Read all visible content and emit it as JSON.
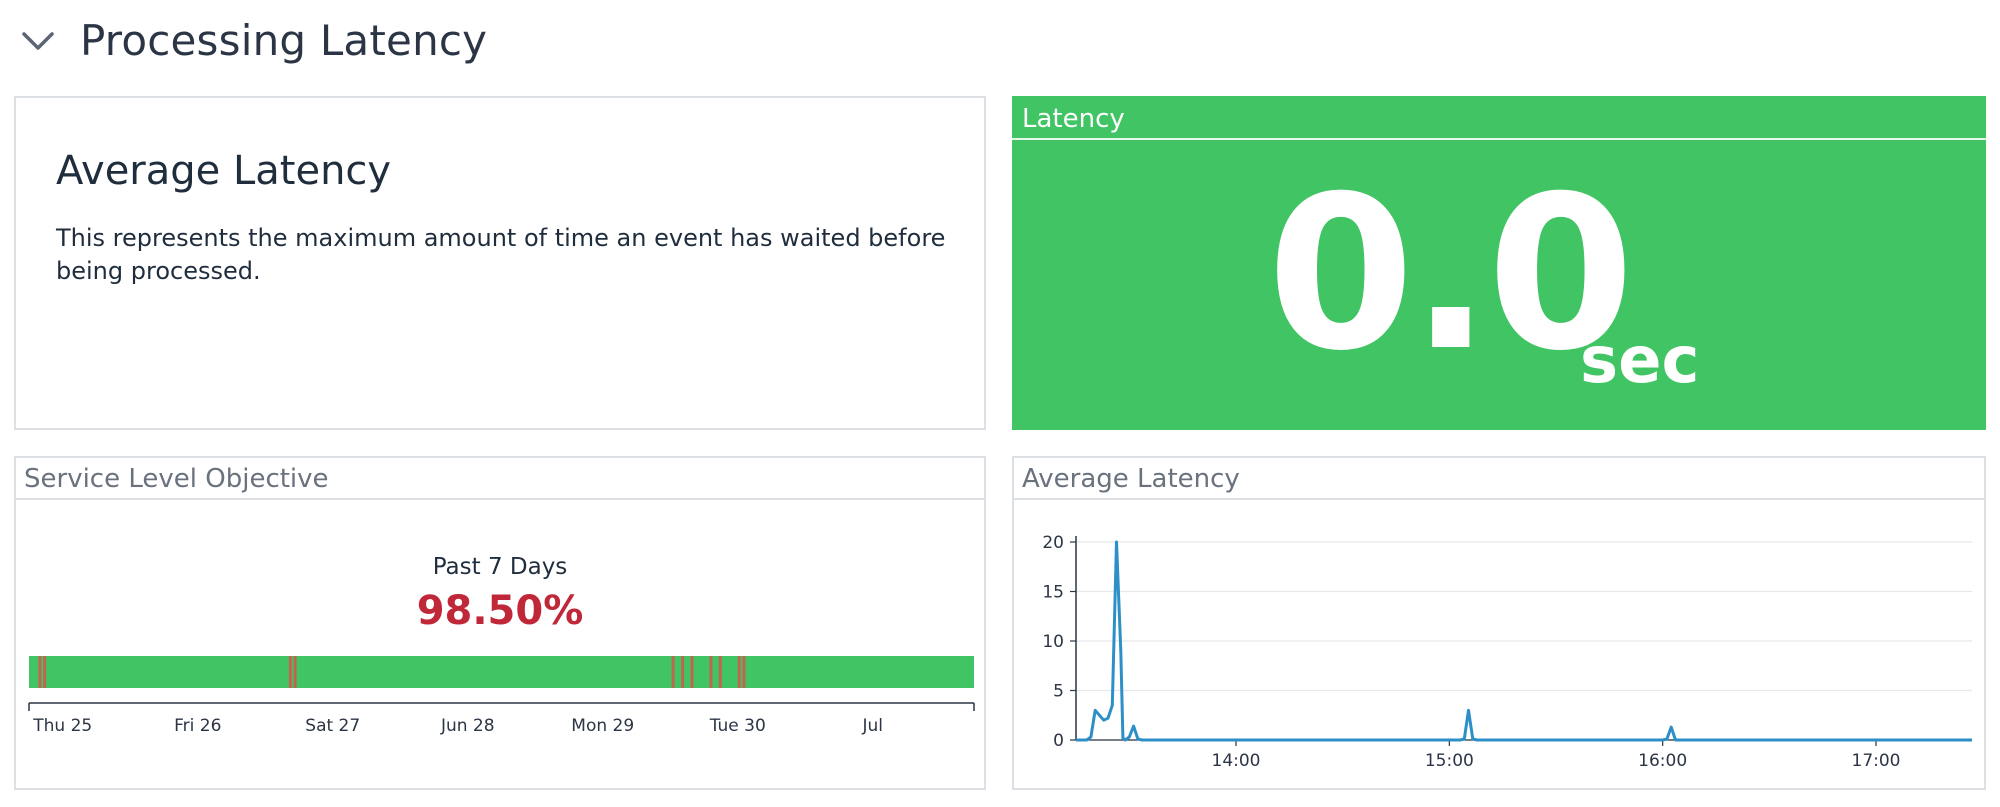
{
  "group": {
    "title": "Processing Latency",
    "collapse_icon": "chevron-down-icon"
  },
  "note": {
    "heading": "Average Latency",
    "body": "This represents the maximum amount of time an event has waited before being processed."
  },
  "query_value": {
    "title": "Latency",
    "value": "0.0",
    "unit": "sec",
    "background_color": "#41c464"
  },
  "slo": {
    "title": "Service Level Objective",
    "period_label": "Past 7 Days",
    "value_label": "98.50%",
    "colors": {
      "good": "#41c464",
      "breach": "#d9534f",
      "value_text": "#c0283a"
    },
    "axis_ticks": [
      "Thu 25",
      "Fri 26",
      "Sat 27",
      "Jun 28",
      "Mon 29",
      "Tue 30",
      "Jul"
    ],
    "breach_positions": [
      0.01,
      0.015,
      0.275,
      0.28,
      0.68,
      0.69,
      0.7,
      0.72,
      0.73,
      0.75,
      0.755
    ]
  },
  "timeseries": {
    "title": "Average Latency",
    "line_color": "#2d8fc7",
    "chart_data": {
      "type": "line",
      "title": "Average Latency",
      "xlabel": "",
      "ylabel": "",
      "ylim": [
        0,
        20
      ],
      "yticks": [
        0,
        5,
        10,
        15,
        20
      ],
      "xticks": [
        "14:00",
        "15:00",
        "16:00",
        "17:00"
      ],
      "x_range_hours": [
        13.25,
        17.45
      ],
      "series": [
        {
          "x": [
            13.25,
            13.28,
            13.3,
            13.32,
            13.34,
            13.36,
            13.38,
            13.4,
            13.42,
            13.44,
            13.46,
            13.47,
            13.48,
            13.5,
            13.52,
            13.54,
            13.56,
            13.58,
            13.6,
            14.0,
            15.05,
            15.07,
            15.09,
            15.11,
            15.13,
            16.0,
            16.02,
            16.04,
            16.06,
            17.0,
            17.45
          ],
          "y": [
            0,
            0,
            0,
            0.3,
            3.0,
            2.5,
            2.0,
            2.2,
            3.5,
            20.0,
            9.0,
            0.2,
            0,
            0.3,
            1.4,
            0.1,
            0,
            0,
            0,
            0,
            0,
            0.1,
            3.0,
            0.1,
            0,
            0,
            0.1,
            1.3,
            0,
            0,
            0
          ]
        }
      ]
    }
  }
}
